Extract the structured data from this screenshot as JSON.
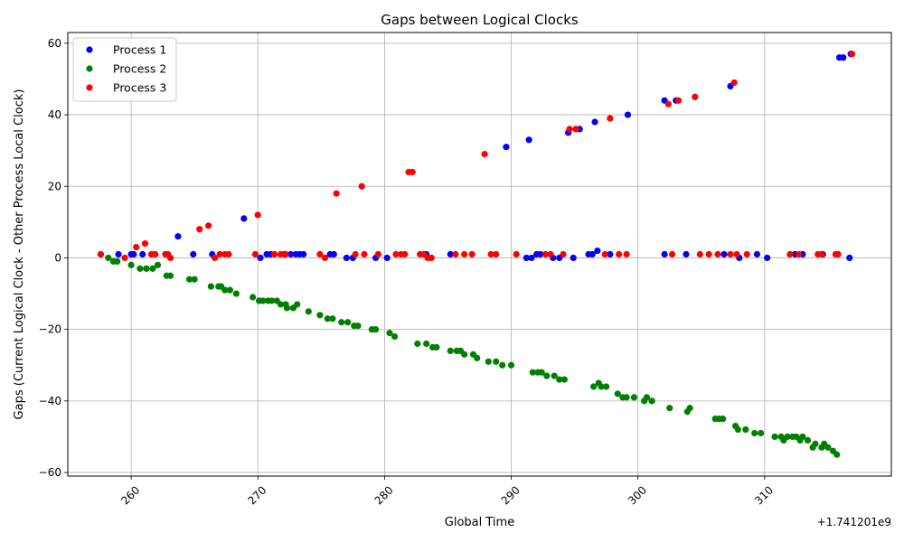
{
  "chart_data": {
    "type": "scatter",
    "title": "Gaps between Logical Clocks",
    "xlabel": "Global Time",
    "ylabel": "Gaps (Current Logical Clock - Other Process Local Clock)",
    "x_offset_label": "+1.741201e9",
    "xlim": [
      255.0,
      320.0
    ],
    "ylim": [
      -61.0,
      63.0
    ],
    "xticks": [
      260,
      270,
      280,
      290,
      300,
      310
    ],
    "yticks": [
      -60,
      -40,
      -20,
      0,
      20,
      40,
      60
    ],
    "grid": true,
    "legend_position": "top-left",
    "series": [
      {
        "name": "Process 1",
        "color": "#0000ff",
        "points": [
          [
            257.6,
            1
          ],
          [
            259.0,
            1
          ],
          [
            260.0,
            1
          ],
          [
            260.2,
            1
          ],
          [
            260.9,
            1
          ],
          [
            261.6,
            1
          ],
          [
            263.7,
            6
          ],
          [
            264.9,
            1
          ],
          [
            266.4,
            1
          ],
          [
            268.9,
            11
          ],
          [
            270.2,
            0
          ],
          [
            270.7,
            1
          ],
          [
            271.0,
            1
          ],
          [
            272.1,
            1
          ],
          [
            272.6,
            1
          ],
          [
            273.0,
            1
          ],
          [
            273.3,
            1
          ],
          [
            273.6,
            1
          ],
          [
            275.7,
            1
          ],
          [
            276.0,
            1
          ],
          [
            277.0,
            0
          ],
          [
            277.5,
            0
          ],
          [
            279.3,
            0
          ],
          [
            280.2,
            0
          ],
          [
            283.3,
            1
          ],
          [
            285.2,
            1
          ],
          [
            289.6,
            31
          ],
          [
            291.2,
            0
          ],
          [
            291.6,
            0
          ],
          [
            291.4,
            33
          ],
          [
            292.0,
            1
          ],
          [
            292.3,
            1
          ],
          [
            293.3,
            0
          ],
          [
            293.8,
            0
          ],
          [
            294.5,
            35
          ],
          [
            294.9,
            0
          ],
          [
            295.4,
            36
          ],
          [
            296.1,
            1
          ],
          [
            296.4,
            1
          ],
          [
            296.6,
            38
          ],
          [
            296.8,
            2
          ],
          [
            297.8,
            1
          ],
          [
            299.2,
            40
          ],
          [
            302.1,
            1
          ],
          [
            302.1,
            44
          ],
          [
            303.0,
            44
          ],
          [
            303.8,
            1
          ],
          [
            306.8,
            1
          ],
          [
            307.3,
            48
          ],
          [
            308.0,
            0
          ],
          [
            309.4,
            1
          ],
          [
            310.2,
            0
          ],
          [
            312.4,
            1
          ],
          [
            313.0,
            1
          ],
          [
            314.6,
            1
          ],
          [
            315.9,
            56
          ],
          [
            316.2,
            56
          ],
          [
            316.7,
            0
          ],
          [
            316.8,
            57
          ]
        ]
      },
      {
        "name": "Process 2",
        "color": "#008000",
        "points": [
          [
            258.2,
            0
          ],
          [
            258.6,
            -1
          ],
          [
            258.9,
            -1
          ],
          [
            260.0,
            -2
          ],
          [
            260.7,
            -3
          ],
          [
            261.2,
            -3
          ],
          [
            261.7,
            -3
          ],
          [
            262.1,
            -2
          ],
          [
            262.8,
            -5
          ],
          [
            263.1,
            -5
          ],
          [
            264.6,
            -6
          ],
          [
            265.0,
            -6
          ],
          [
            266.3,
            -8
          ],
          [
            266.9,
            -8
          ],
          [
            267.1,
            -8
          ],
          [
            267.4,
            -9
          ],
          [
            267.8,
            -9
          ],
          [
            268.3,
            -10
          ],
          [
            269.6,
            -11
          ],
          [
            270.1,
            -12
          ],
          [
            270.4,
            -12
          ],
          [
            270.8,
            -12
          ],
          [
            271.1,
            -12
          ],
          [
            271.5,
            -12
          ],
          [
            271.8,
            -13
          ],
          [
            272.2,
            -13
          ],
          [
            272.3,
            -14
          ],
          [
            272.8,
            -14
          ],
          [
            273.1,
            -13
          ],
          [
            274.0,
            -15
          ],
          [
            274.9,
            -16
          ],
          [
            275.5,
            -17
          ],
          [
            275.9,
            -17
          ],
          [
            276.6,
            -18
          ],
          [
            277.1,
            -18
          ],
          [
            277.6,
            -19
          ],
          [
            277.9,
            -19
          ],
          [
            279.0,
            -20
          ],
          [
            279.3,
            -20
          ],
          [
            280.4,
            -21
          ],
          [
            280.8,
            -22
          ],
          [
            282.6,
            -24
          ],
          [
            283.3,
            -24
          ],
          [
            283.8,
            -25
          ],
          [
            284.1,
            -25
          ],
          [
            285.2,
            -26
          ],
          [
            285.7,
            -26
          ],
          [
            286.0,
            -26
          ],
          [
            286.3,
            -27
          ],
          [
            287.0,
            -27
          ],
          [
            287.3,
            -28
          ],
          [
            288.2,
            -29
          ],
          [
            288.8,
            -29
          ],
          [
            289.3,
            -30
          ],
          [
            290.0,
            -30
          ],
          [
            291.7,
            -32
          ],
          [
            292.1,
            -32
          ],
          [
            292.4,
            -32
          ],
          [
            292.8,
            -33
          ],
          [
            293.4,
            -33
          ],
          [
            293.8,
            -34
          ],
          [
            294.2,
            -34
          ],
          [
            296.5,
            -36
          ],
          [
            296.9,
            -35
          ],
          [
            297.1,
            -36
          ],
          [
            297.5,
            -36
          ],
          [
            298.4,
            -38
          ],
          [
            298.8,
            -39
          ],
          [
            299.1,
            -39
          ],
          [
            299.7,
            -39
          ],
          [
            300.5,
            -40
          ],
          [
            300.7,
            -39
          ],
          [
            301.1,
            -40
          ],
          [
            302.5,
            -42
          ],
          [
            303.9,
            -43
          ],
          [
            304.1,
            -42
          ],
          [
            306.1,
            -45
          ],
          [
            306.4,
            -45
          ],
          [
            306.7,
            -45
          ],
          [
            307.7,
            -47
          ],
          [
            307.9,
            -48
          ],
          [
            308.5,
            -48
          ],
          [
            309.2,
            -49
          ],
          [
            309.7,
            -49
          ],
          [
            310.8,
            -50
          ],
          [
            311.3,
            -50
          ],
          [
            311.5,
            -51
          ],
          [
            311.8,
            -50
          ],
          [
            312.2,
            -50
          ],
          [
            312.5,
            -50
          ],
          [
            312.8,
            -51
          ],
          [
            313.0,
            -50
          ],
          [
            313.4,
            -51
          ],
          [
            313.8,
            -53
          ],
          [
            314.0,
            -52
          ],
          [
            314.5,
            -53
          ],
          [
            314.7,
            -52
          ],
          [
            315.0,
            -53
          ],
          [
            315.4,
            -54
          ],
          [
            315.7,
            -55
          ]
        ]
      },
      {
        "name": "Process 3",
        "color": "#ff0000",
        "points": [
          [
            257.6,
            1
          ],
          [
            259.5,
            0
          ],
          [
            260.4,
            3
          ],
          [
            261.1,
            4
          ],
          [
            261.6,
            1
          ],
          [
            261.9,
            1
          ],
          [
            262.7,
            1
          ],
          [
            262.9,
            1
          ],
          [
            263.1,
            0
          ],
          [
            265.4,
            8
          ],
          [
            266.1,
            9
          ],
          [
            266.6,
            0
          ],
          [
            267.0,
            1
          ],
          [
            267.4,
            1
          ],
          [
            267.7,
            1
          ],
          [
            269.8,
            1
          ],
          [
            270.0,
            12
          ],
          [
            271.3,
            1
          ],
          [
            271.8,
            1
          ],
          [
            272.2,
            1
          ],
          [
            274.9,
            1
          ],
          [
            275.3,
            0
          ],
          [
            276.2,
            18
          ],
          [
            277.7,
            1
          ],
          [
            278.2,
            20
          ],
          [
            278.4,
            1
          ],
          [
            279.5,
            1
          ],
          [
            280.9,
            1
          ],
          [
            281.3,
            1
          ],
          [
            281.6,
            1
          ],
          [
            281.9,
            24
          ],
          [
            282.2,
            24
          ],
          [
            282.8,
            1
          ],
          [
            283.1,
            1
          ],
          [
            283.4,
            0
          ],
          [
            283.7,
            0
          ],
          [
            285.6,
            1
          ],
          [
            286.3,
            1
          ],
          [
            286.9,
            1
          ],
          [
            287.9,
            29
          ],
          [
            288.4,
            1
          ],
          [
            288.8,
            1
          ],
          [
            290.4,
            1
          ],
          [
            292.7,
            1
          ],
          [
            293.1,
            1
          ],
          [
            294.1,
            1
          ],
          [
            294.6,
            36
          ],
          [
            295.1,
            36
          ],
          [
            297.4,
            1
          ],
          [
            297.8,
            39
          ],
          [
            298.5,
            1
          ],
          [
            299.1,
            1
          ],
          [
            302.4,
            43
          ],
          [
            302.7,
            1
          ],
          [
            303.2,
            44
          ],
          [
            304.5,
            45
          ],
          [
            304.9,
            1
          ],
          [
            305.6,
            1
          ],
          [
            306.3,
            1
          ],
          [
            307.3,
            1
          ],
          [
            307.6,
            49
          ],
          [
            307.8,
            1
          ],
          [
            308.6,
            1
          ],
          [
            312.0,
            1
          ],
          [
            312.7,
            1
          ],
          [
            314.2,
            1
          ],
          [
            314.5,
            1
          ],
          [
            315.6,
            1
          ],
          [
            315.8,
            1
          ],
          [
            316.9,
            57
          ]
        ]
      }
    ]
  }
}
